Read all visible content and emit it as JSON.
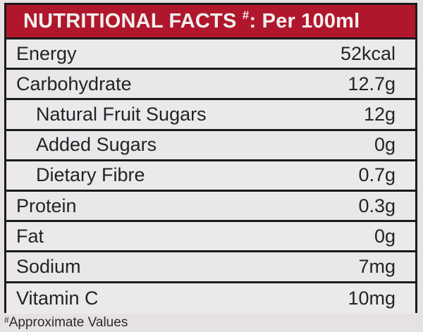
{
  "header": {
    "title": "NUTRITIONAL FACTS",
    "marker": "#",
    "suffix": ": Per 100ml"
  },
  "rows": [
    {
      "label": "Energy",
      "value": "52kcal",
      "indent": false
    },
    {
      "label": "Carbohydrate",
      "value": "12.7g",
      "indent": false
    },
    {
      "label": "Natural Fruit Sugars",
      "value": "12g",
      "indent": true
    },
    {
      "label": "Added Sugars",
      "value": "0g",
      "indent": true
    },
    {
      "label": "Dietary Fibre",
      "value": "0.7g",
      "indent": true
    },
    {
      "label": "Protein",
      "value": "0.3g",
      "indent": false
    },
    {
      "label": "Fat",
      "value": "0g",
      "indent": false
    },
    {
      "label": "Sodium",
      "value": "7mg",
      "indent": false
    },
    {
      "label": "Vitamin C",
      "value": "10mg",
      "indent": false
    }
  ],
  "footnote": {
    "marker": "#",
    "text": "Approximate Values"
  },
  "colors": {
    "header_background": "#b0172c",
    "border": "#1b1b1d"
  }
}
